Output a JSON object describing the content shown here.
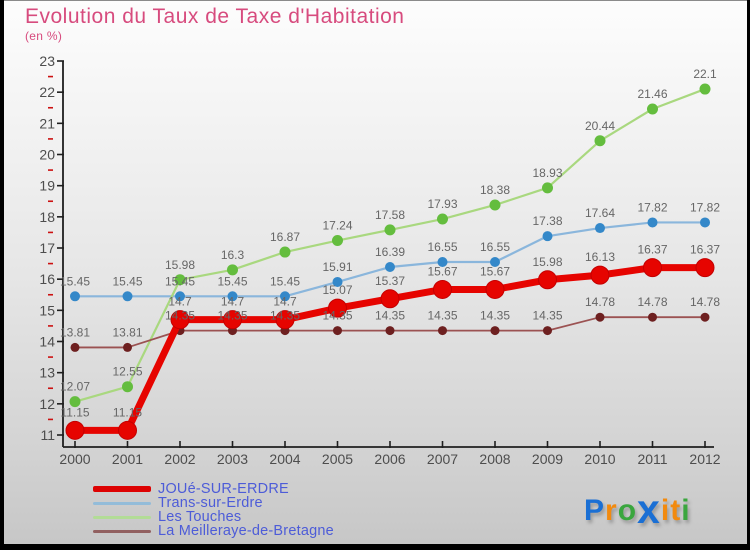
{
  "header": {
    "title": "Evolution du Taux de Taxe d'Habitation",
    "subtitle": "(en %)"
  },
  "chart_data": {
    "type": "line",
    "title": "Evolution du Taux de Taxe d'Habitation",
    "ylabel": "(en %)",
    "xlabel": "",
    "x": [
      2000,
      2001,
      2002,
      2003,
      2004,
      2005,
      2006,
      2007,
      2008,
      2009,
      2010,
      2011,
      2012
    ],
    "ylim": [
      11,
      23
    ],
    "y_tick_step": 1,
    "y_minor_tick_step": 0.5,
    "grid": false,
    "legend_position": "bottom-left",
    "series": [
      {
        "name": "JOUé-SUR-ERDRE",
        "line_color": "#e60400",
        "marker_color": "#e60400",
        "values": [
          11.15,
          11.15,
          14.7,
          14.7,
          14.7,
          15.07,
          15.37,
          15.67,
          15.67,
          15.98,
          16.13,
          16.37,
          16.37
        ],
        "point_labels": [
          "11.15",
          "11.15",
          "14.7",
          "14.7",
          "14.7",
          "15.07",
          "15.37",
          "15.67",
          "15.67",
          "15.98",
          "16.13",
          "16.37",
          "16.37"
        ]
      },
      {
        "name": "Trans-sur-Erdre",
        "line_color": "#8ab6dc",
        "marker_color": "#3488c9",
        "values": [
          15.45,
          15.45,
          15.45,
          15.45,
          15.45,
          15.91,
          16.39,
          16.55,
          16.55,
          17.38,
          17.64,
          17.82,
          17.82
        ],
        "point_labels": [
          "15.45",
          "15.45",
          "15.45",
          "15.45",
          "15.45",
          "15.91",
          "16.39",
          "16.55",
          "16.55",
          "17.38",
          "17.64",
          "17.82",
          "17.82"
        ]
      },
      {
        "name": "Les Touches",
        "line_color": "#a9d87f",
        "marker_color": "#64bd3e",
        "values": [
          12.07,
          12.55,
          15.98,
          16.3,
          16.87,
          17.24,
          17.58,
          17.93,
          18.38,
          18.93,
          20.44,
          21.46,
          22.1
        ],
        "point_labels": [
          "12.07",
          "12.55",
          "15.98",
          "16.3",
          "16.87",
          "17.24",
          "17.58",
          "17.93",
          "18.38",
          "18.93",
          "20.44",
          "21.46",
          "22.1"
        ]
      },
      {
        "name": "La Meilleraye-de-Bretagne",
        "line_color": "#9b5252",
        "marker_color": "#6e2020",
        "values": [
          13.81,
          13.81,
          14.35,
          14.35,
          14.35,
          14.35,
          14.35,
          14.35,
          14.35,
          14.35,
          14.78,
          14.78,
          14.78
        ],
        "point_labels": [
          "13.81",
          "13.81",
          "14.35",
          "14.35",
          "14.35",
          "14.35",
          "14.35",
          "14.35",
          "14.35",
          "14.35",
          "14.78",
          "14.78",
          "14.78"
        ]
      }
    ]
  },
  "legend": {
    "items": [
      {
        "label": "JOUé-SUR-ERDRE",
        "swatch_color": "#dd0202",
        "thick": true
      },
      {
        "label": "Trans-sur-Erdre",
        "swatch_color": "#93bcd9",
        "thick": false
      },
      {
        "label": "Les Touches",
        "swatch_color": "#b2dc96",
        "thick": false
      },
      {
        "label": "La Meilleraye-de-Bretagne",
        "swatch_color": "#916060",
        "thick": false
      }
    ]
  },
  "logo": {
    "text": "Proxiti",
    "letters": [
      {
        "ch": "P",
        "color": "#1a6fd4",
        "big": false
      },
      {
        "ch": "r",
        "color": "#f28a0e",
        "big": false
      },
      {
        "ch": "o",
        "color": "#3aa63e",
        "big": false
      },
      {
        "ch": "x",
        "color": "#1a6fd4",
        "big": true
      },
      {
        "ch": "i",
        "color": "#f28a0e",
        "big": false
      },
      {
        "ch": "t",
        "color": "#f28a0e",
        "big": false
      },
      {
        "ch": "i",
        "color": "#3aa63e",
        "big": false
      }
    ]
  },
  "colors": {
    "title": "#d74b7e",
    "legend_text": "#4d5cd8",
    "axis": "#1f1f1f",
    "tick_label": "#4d4d4d",
    "minor_tick": "#cc1111",
    "point_label": "#666666"
  }
}
